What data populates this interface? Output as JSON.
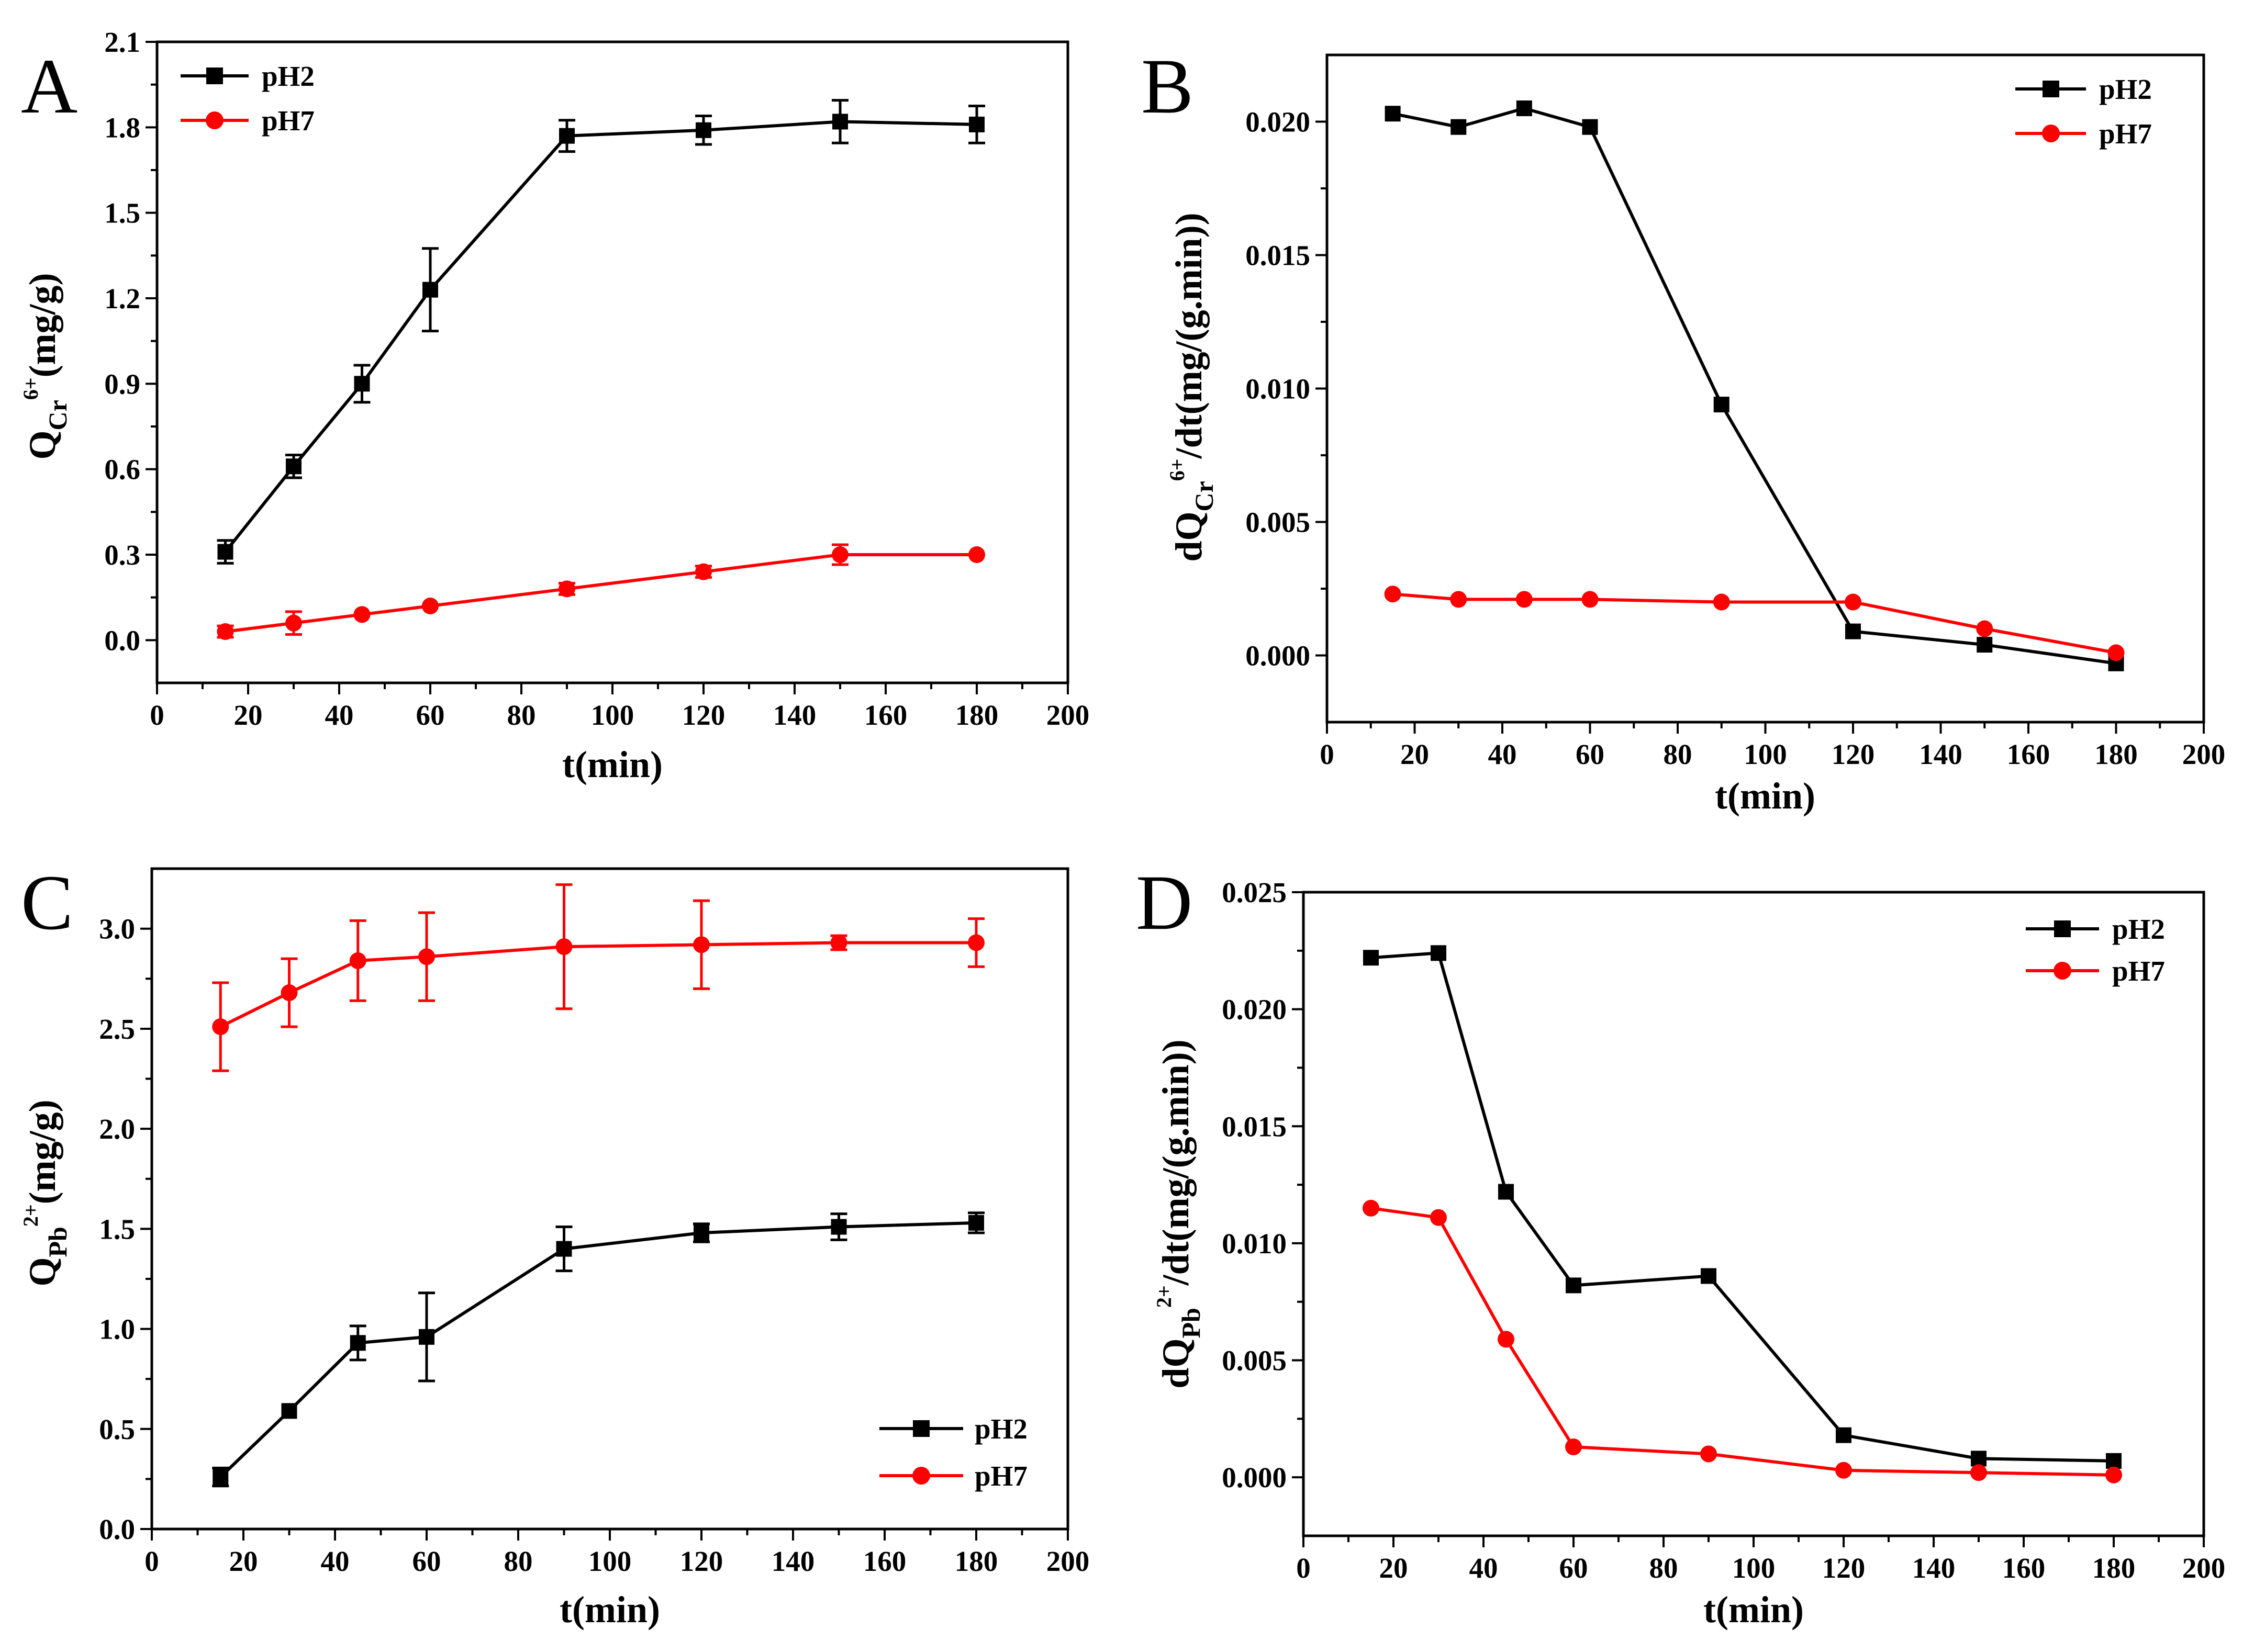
{
  "chart_data": [
    {
      "panel": "A",
      "type": "line",
      "xlabel": "t(min)",
      "ylabel": {
        "main": "Q",
        "sub": "Cr",
        "sup": "6+",
        "unit": "(mg/g)"
      },
      "xlim": [
        0,
        200
      ],
      "ylim": [
        -0.15,
        2.1
      ],
      "xticks": [
        0,
        20,
        40,
        60,
        80,
        100,
        120,
        140,
        160,
        180,
        200
      ],
      "xtick_labels": [
        "0",
        "20",
        "40",
        "60",
        "80",
        "100",
        "120",
        "140",
        "160",
        "180",
        "200"
      ],
      "yticks": [
        0.0,
        0.3,
        0.6,
        0.9,
        1.2,
        1.5,
        1.8,
        2.1
      ],
      "ytick_labels": [
        "0.0",
        "0.3",
        "0.6",
        "0.9",
        "1.2",
        "1.5",
        "1.8",
        "2.1"
      ],
      "legend_position": "top-left",
      "x": [
        15,
        30,
        45,
        60,
        90,
        120,
        150,
        180
      ],
      "series": [
        {
          "name": "pH2",
          "color": "#000000",
          "marker": "square",
          "values": [
            0.31,
            0.61,
            0.9,
            1.23,
            1.77,
            1.79,
            1.82,
            1.81
          ],
          "errors": [
            0.04,
            0.04,
            0.065,
            0.145,
            0.055,
            0.05,
            0.075,
            0.065
          ]
        },
        {
          "name": "pH7",
          "color": "#ff0000",
          "marker": "circle",
          "values": [
            0.03,
            0.06,
            0.09,
            0.12,
            0.18,
            0.24,
            0.3,
            0.3
          ],
          "errors": [
            0.02,
            0.04,
            0.0,
            0.0,
            0.02,
            0.02,
            0.035,
            0.0
          ]
        }
      ]
    },
    {
      "panel": "B",
      "type": "line",
      "xlabel": "t(min)",
      "ylabel": {
        "prefix": "dQ",
        "sub": "Cr",
        "sup": "6+",
        "unit": "/dt(mg/(g.min))"
      },
      "xlim": [
        0,
        200
      ],
      "ylim": [
        -0.0025,
        0.0225
      ],
      "xticks": [
        0,
        20,
        40,
        60,
        80,
        100,
        120,
        140,
        160,
        180,
        200
      ],
      "xtick_labels": [
        "0",
        "20",
        "40",
        "60",
        "80",
        "100",
        "120",
        "140",
        "160",
        "180",
        "200"
      ],
      "yticks": [
        0.0,
        0.005,
        0.01,
        0.015,
        0.02
      ],
      "ytick_labels": [
        "0.000",
        "0.005",
        "0.010",
        "0.015",
        "0.020"
      ],
      "legend_position": "top-right",
      "x": [
        15,
        30,
        45,
        60,
        90,
        120,
        150,
        180
      ],
      "series": [
        {
          "name": "pH2",
          "color": "#000000",
          "marker": "square",
          "values": [
            0.0203,
            0.0198,
            0.0205,
            0.0198,
            0.0094,
            0.0009,
            0.0004,
            -0.0003
          ]
        },
        {
          "name": "pH7",
          "color": "#ff0000",
          "marker": "circle",
          "values": [
            0.0023,
            0.0021,
            0.0021,
            0.0021,
            0.002,
            0.002,
            0.001,
            0.0001
          ]
        }
      ]
    },
    {
      "panel": "C",
      "type": "line",
      "xlabel": "t(min)",
      "ylabel": {
        "main": "Q",
        "sub": "Pb",
        "sup": "2+",
        "unit": "(mg/g)"
      },
      "xlim": [
        0,
        200
      ],
      "ylim": [
        0,
        3.3
      ],
      "xticks": [
        0,
        20,
        40,
        60,
        80,
        100,
        120,
        140,
        160,
        180,
        200
      ],
      "xtick_labels": [
        "0",
        "20",
        "40",
        "60",
        "80",
        "100",
        "120",
        "140",
        "160",
        "180",
        "200"
      ],
      "yticks": [
        0.0,
        0.5,
        1.0,
        1.5,
        2.0,
        2.5,
        3.0
      ],
      "ytick_labels": [
        "0.0",
        "0.5",
        "1.0",
        "1.5",
        "2.0",
        "2.5",
        "3.0"
      ],
      "legend_position": "bottom-right",
      "x": [
        15,
        30,
        45,
        60,
        90,
        120,
        150,
        180
      ],
      "series": [
        {
          "name": "pH2",
          "color": "#000000",
          "marker": "square",
          "values": [
            0.26,
            0.59,
            0.93,
            0.96,
            1.4,
            1.48,
            1.51,
            1.53
          ],
          "errors": [
            0.045,
            0.0,
            0.085,
            0.22,
            0.11,
            0.045,
            0.065,
            0.05
          ]
        },
        {
          "name": "pH7",
          "color": "#ff0000",
          "marker": "circle",
          "values": [
            2.51,
            2.68,
            2.84,
            2.86,
            2.91,
            2.92,
            2.93,
            2.93
          ],
          "errors": [
            0.22,
            0.17,
            0.2,
            0.22,
            0.31,
            0.22,
            0.035,
            0.12
          ]
        }
      ]
    },
    {
      "panel": "D",
      "type": "line",
      "xlabel": "t(min)",
      "ylabel": {
        "prefix": "dQ",
        "sub": "Pb",
        "sup": "2+",
        "unit": "/dt(mg/(g.min))"
      },
      "xlim": [
        0,
        200
      ],
      "ylim": [
        -0.0025,
        0.025
      ],
      "xticks": [
        0,
        20,
        40,
        60,
        80,
        100,
        120,
        140,
        160,
        180,
        200
      ],
      "xtick_labels": [
        "0",
        "20",
        "40",
        "60",
        "80",
        "100",
        "120",
        "140",
        "160",
        "180",
        "200"
      ],
      "yticks": [
        0.0,
        0.005,
        0.01,
        0.015,
        0.02,
        0.025
      ],
      "ytick_labels": [
        "0.000",
        "0.005",
        "0.010",
        "0.015",
        "0.020",
        "0.025"
      ],
      "legend_position": "top-right",
      "x": [
        15,
        30,
        45,
        60,
        90,
        120,
        150,
        180
      ],
      "series": [
        {
          "name": "pH2",
          "color": "#000000",
          "marker": "square",
          "values": [
            0.0222,
            0.0224,
            0.0122,
            0.0082,
            0.0086,
            0.0018,
            0.0008,
            0.0007
          ]
        },
        {
          "name": "pH7",
          "color": "#ff0000",
          "marker": "circle",
          "values": [
            0.0115,
            0.0111,
            0.0059,
            0.0013,
            0.001,
            0.0003,
            0.0002,
            0.0001
          ]
        }
      ]
    }
  ]
}
